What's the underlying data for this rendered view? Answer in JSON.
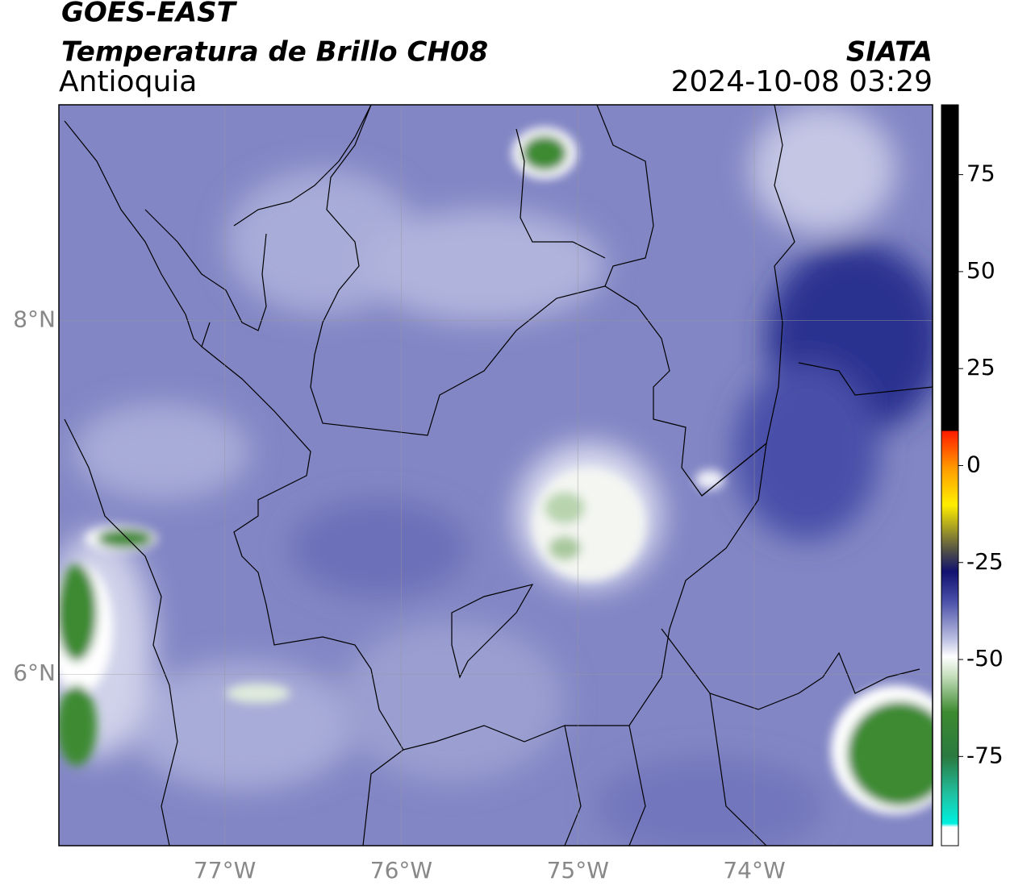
{
  "map": {
    "title": "GOES-EAST",
    "subtitle": "Temperatura de Brillo CH08",
    "region": "Antioquia",
    "source": "SIATA",
    "timestamp": "2024-10-08 03:29",
    "xlim": [
      -77.94,
      -72.99
    ],
    "ylim": [
      5.03,
      9.22
    ],
    "xticks": [
      {
        "value": -77,
        "label": "77°W"
      },
      {
        "value": -76,
        "label": "76°W"
      },
      {
        "value": -75,
        "label": "75°W"
      },
      {
        "value": -74,
        "label": "74°W"
      }
    ],
    "yticks": [
      {
        "value": 8,
        "label": "8°N"
      },
      {
        "value": 6,
        "label": "6°N"
      }
    ],
    "grid": true,
    "colorbar": {
      "clim": [
        -98,
        93
      ],
      "ticks": [
        75,
        50,
        25,
        0,
        -25,
        -50,
        -75
      ]
    }
  }
}
